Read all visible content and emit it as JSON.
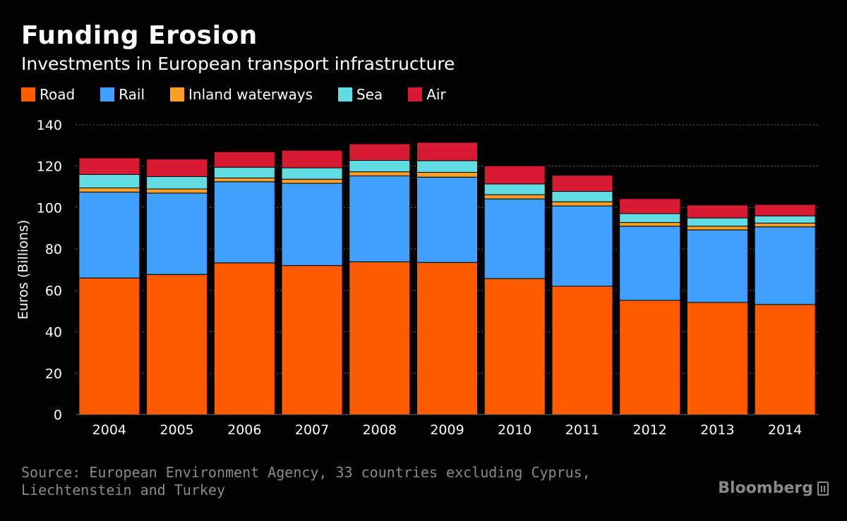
{
  "title": "Funding Erosion",
  "subtitle": "Investments in European transport infrastructure",
  "source": "Source: European Environment Agency, 33 countries excluding Cyprus, Liechtenstein and Turkey",
  "brand": "Bloomberg",
  "brand_icon": "bloomberg-terminal-icon",
  "chart_data": {
    "type": "bar",
    "stacked": true,
    "title": "Funding Erosion",
    "subtitle": "Investments in European transport infrastructure",
    "xlabel": "",
    "ylabel": "Euros (Billions)",
    "ylim": [
      0,
      140
    ],
    "yticks": [
      0,
      20,
      40,
      60,
      80,
      100,
      120,
      140
    ],
    "grid": true,
    "legend_position": "top-left",
    "categories": [
      "2004",
      "2005",
      "2006",
      "2007",
      "2008",
      "2009",
      "2010",
      "2011",
      "2012",
      "2013",
      "2014"
    ],
    "series": [
      {
        "name": "Road",
        "color": "#ff5a00",
        "values": [
          66,
          67.7,
          73.3,
          72,
          73.8,
          73.5,
          65.7,
          62,
          55.2,
          54.2,
          53.2
        ]
      },
      {
        "name": "Rail",
        "color": "#3fa0ff",
        "values": [
          41.5,
          39.3,
          39.2,
          39.7,
          41.5,
          41.2,
          38.5,
          38.8,
          35.8,
          35,
          37.5
        ]
      },
      {
        "name": "Inland waterways",
        "color": "#ff9e21",
        "values": [
          2,
          2,
          1.8,
          2,
          2,
          2.3,
          2,
          2,
          1.8,
          1.8,
          1.8
        ]
      },
      {
        "name": "Sea",
        "color": "#63dbe3",
        "values": [
          6.5,
          6,
          5.2,
          5.5,
          5.5,
          5.7,
          5.2,
          5,
          4.3,
          4,
          3.5
        ]
      },
      {
        "name": "Air",
        "color": "#d81a33",
        "values": [
          8,
          8.4,
          7.5,
          8.5,
          8,
          8.8,
          8.8,
          7.8,
          7.2,
          6.2,
          5.5
        ]
      }
    ]
  }
}
